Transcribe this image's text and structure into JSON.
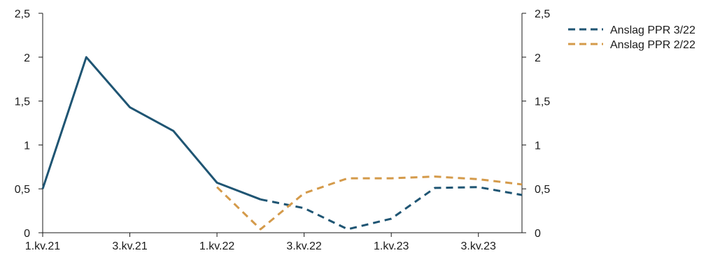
{
  "chart_data": {
    "type": "line",
    "title": "",
    "xlabel": "",
    "ylabel": "",
    "ylim": [
      0,
      2.5
    ],
    "y_ticks": [
      "0",
      "0,5",
      "1",
      "1,5",
      "2",
      "2,5"
    ],
    "x_ticks": [
      "1.kv.21",
      "3.kv.21",
      "1.kv.22",
      "3.kv.22",
      "1.kv.23",
      "3.kv.23"
    ],
    "x_range_quarters": [
      0,
      11
    ],
    "grid": false,
    "legend_position": "top-right, outside plot",
    "series": [
      {
        "name": "",
        "style": "solid",
        "color": "#1f5573",
        "x": [
          "1.kv.21",
          "2.kv.21",
          "3.kv.21",
          "4.kv.21",
          "1.kv.22",
          "2.kv.22"
        ],
        "values": [
          0.5,
          2.0,
          1.43,
          1.16,
          0.57,
          0.38
        ]
      },
      {
        "name": "Anslag PPR 3/22",
        "style": "dashed",
        "color": "#1f5573",
        "x": [
          "2.kv.22",
          "3.kv.22",
          "4.kv.22",
          "1.kv.23",
          "2.kv.23",
          "3.kv.23",
          "4.kv.23"
        ],
        "values": [
          0.38,
          0.28,
          0.04,
          0.16,
          0.51,
          0.52,
          0.43
        ]
      },
      {
        "name": "Anslag PPR 2/22",
        "style": "dashed",
        "color": "#d49a4a",
        "x": [
          "1.kv.22",
          "2.kv.22",
          "3.kv.22",
          "4.kv.22",
          "1.kv.23",
          "2.kv.23",
          "3.kv.23",
          "4.kv.23"
        ],
        "values": [
          0.52,
          0.04,
          0.45,
          0.62,
          0.62,
          0.64,
          0.61,
          0.55
        ]
      }
    ]
  }
}
